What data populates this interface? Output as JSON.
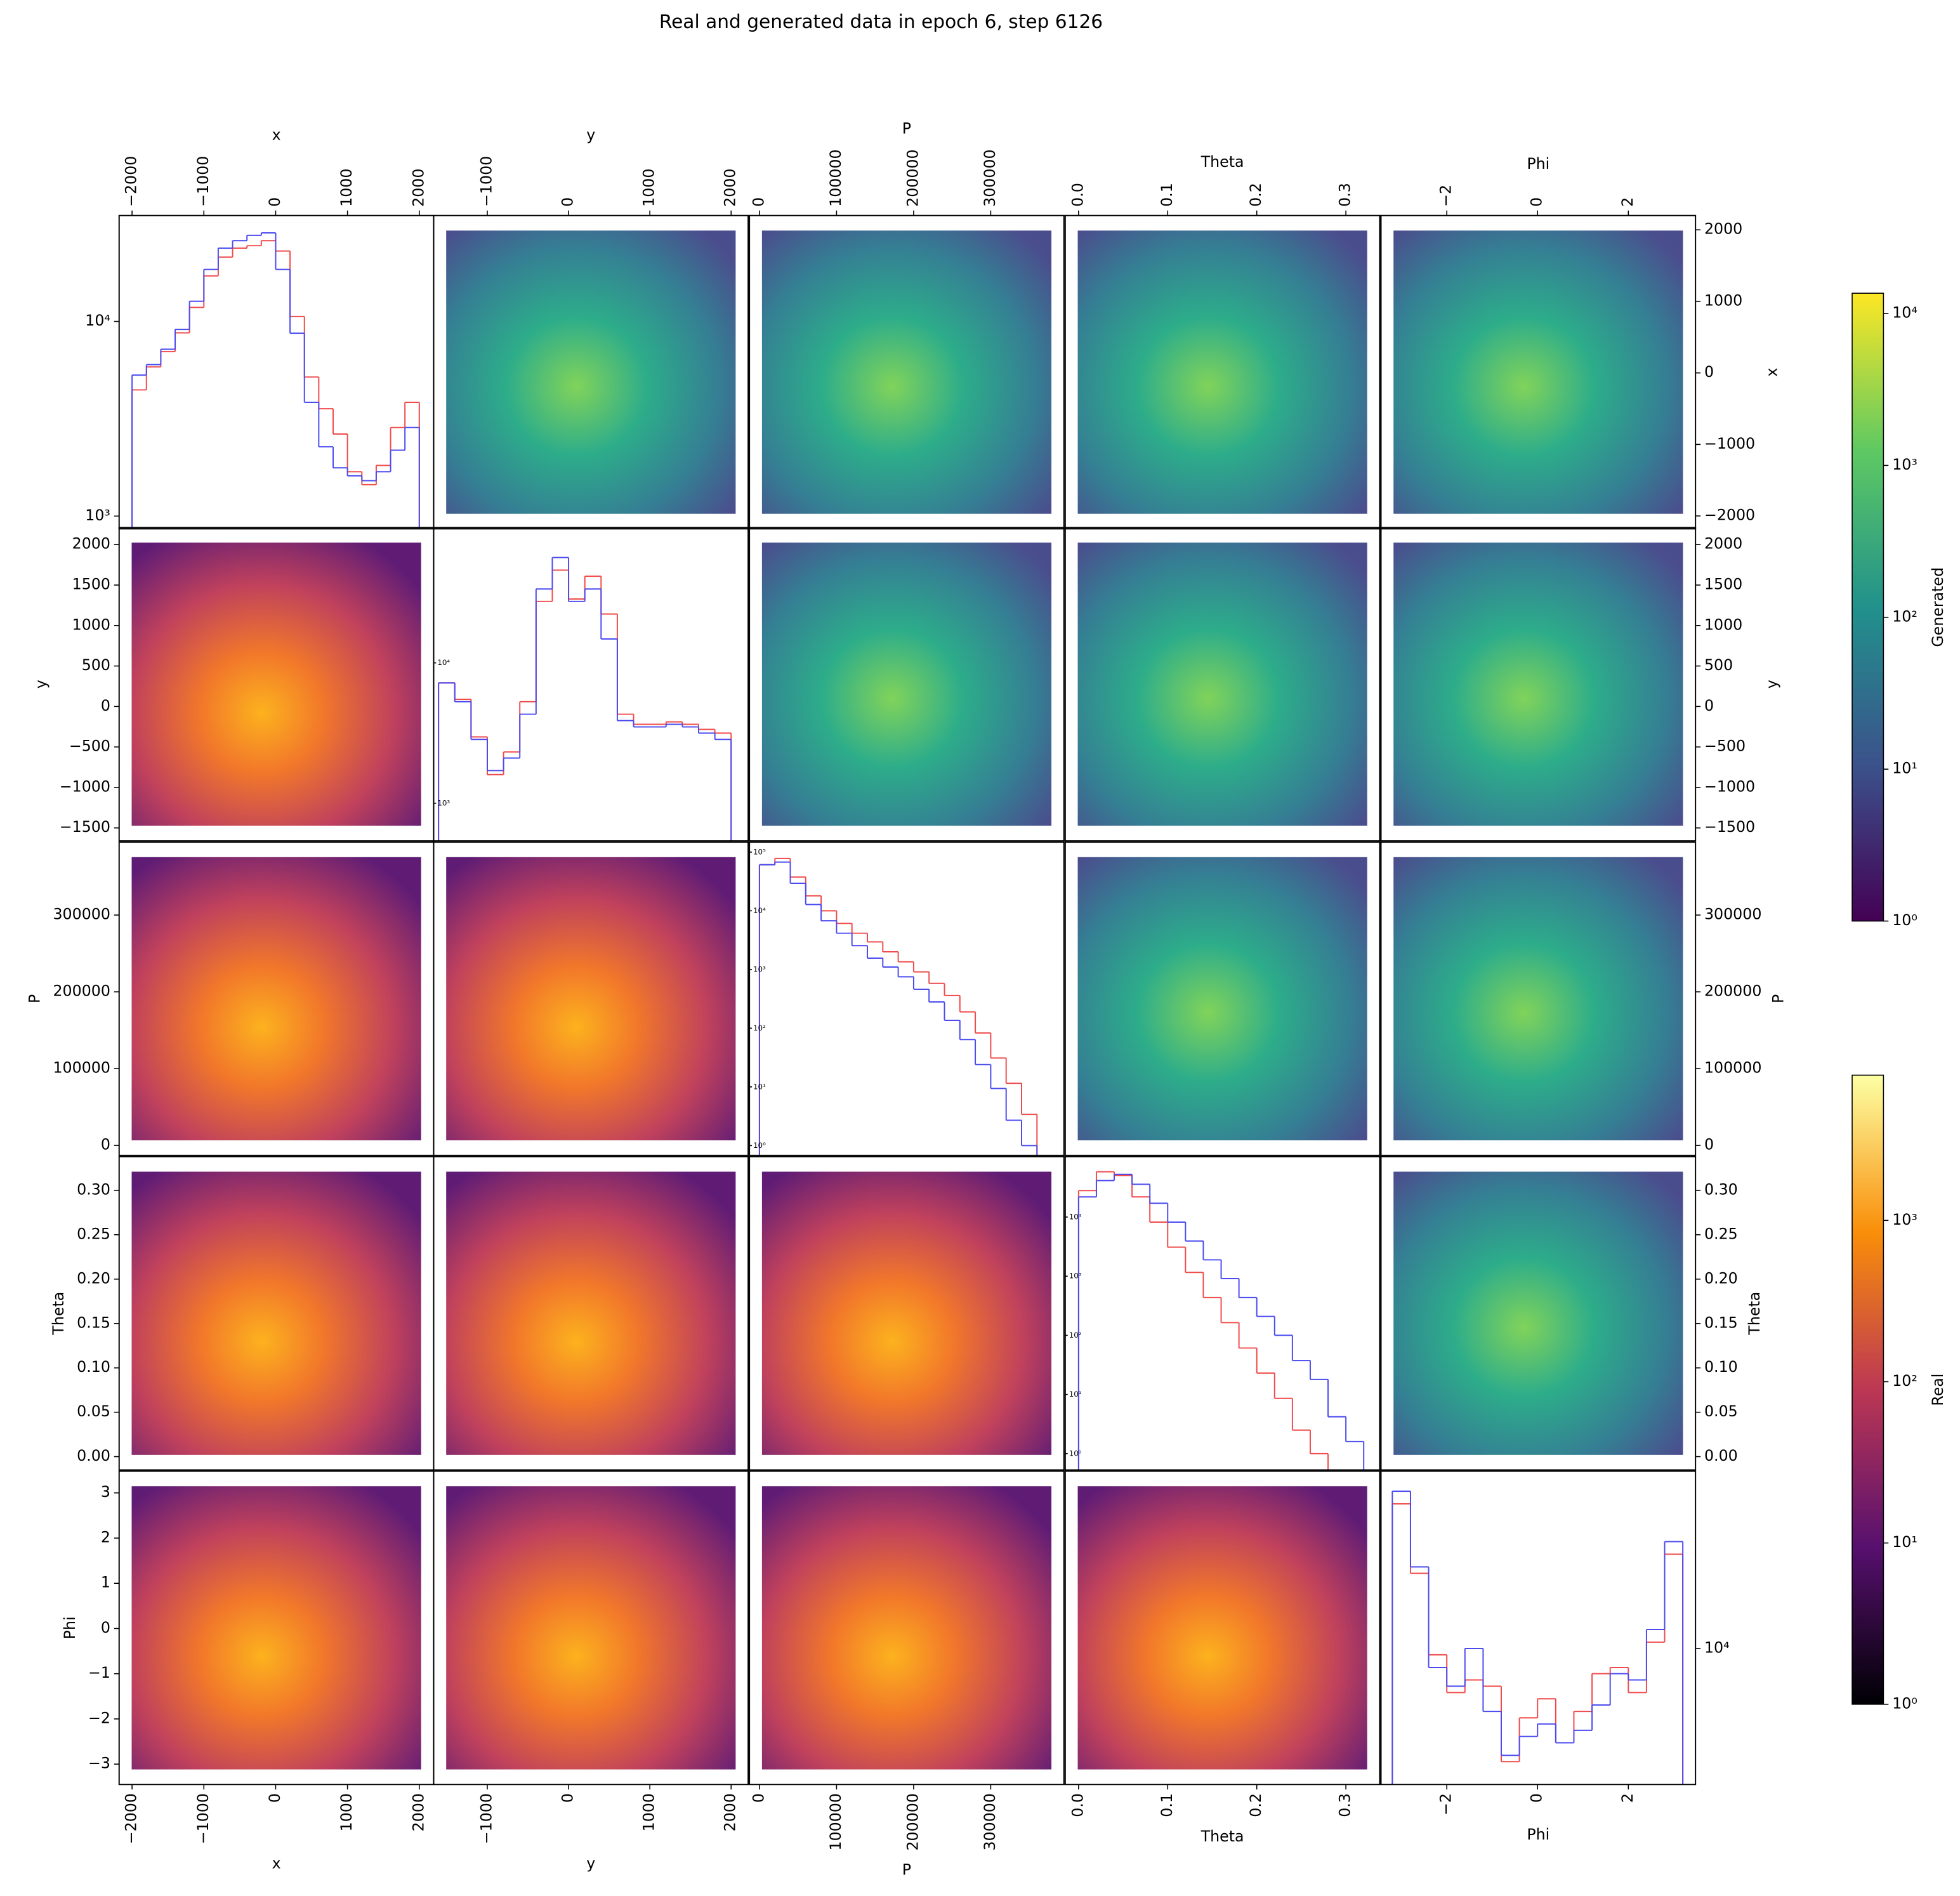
{
  "chart_data": {
    "type": "pairplot",
    "title": "Real and generated data in epoch 6, step 6126",
    "variables": [
      {
        "label": "x",
        "lim": [
          -2180,
          2200
        ],
        "ticks": [
          {
            "value": -2000,
            "label": "−2000"
          },
          {
            "value": -1000,
            "label": "−1000"
          },
          0,
          1000,
          2000
        ]
      },
      {
        "label": "y",
        "lim": [
          -1660,
          2210
        ],
        "ticks": [
          {
            "value": -1000,
            "label": "−1000"
          },
          0,
          1000,
          2000
        ],
        "row_ticks": [
          {
            "value": -1500,
            "label": "−1500"
          },
          {
            "value": -1000,
            "label": "−1000"
          },
          {
            "value": -500,
            "label": "−500"
          },
          0,
          500,
          1000,
          1500,
          2000
        ]
      },
      {
        "label": "P",
        "lim": [
          -13000,
          395000
        ],
        "ticks": [
          0,
          100000,
          200000,
          300000
        ]
      },
      {
        "label": "Theta",
        "lim": [
          -0.015,
          0.338
        ],
        "ticks": [
          {
            "value": 0,
            "label": "0.0"
          },
          0.1,
          0.2,
          0.3
        ],
        "row_ticks": [
          {
            "value": 0,
            "label": "0.00"
          },
          0.05,
          {
            "value": 0.1,
            "label": "0.10"
          },
          0.15,
          {
            "value": 0.2,
            "label": "0.20"
          },
          0.25,
          {
            "value": 0.3,
            "label": "0.30"
          }
        ]
      },
      {
        "label": "Phi",
        "lim": [
          -3.45,
          3.48
        ],
        "ticks": [
          {
            "value": -2,
            "label": "−2"
          },
          0,
          2
        ],
        "row_ticks": [
          {
            "value": -3,
            "label": "−3"
          },
          {
            "value": -2,
            "label": "−2"
          },
          {
            "value": -1,
            "label": "−1"
          },
          0,
          1,
          2,
          3
        ]
      }
    ],
    "diagonal": [
      {
        "type": "histogram",
        "log_scale": true,
        "ylim": [
          860,
          35000
        ],
        "yticks": [
          {
            "value": 1000,
            "label": "10³"
          },
          {
            "value": 10000,
            "label": "10⁴"
          }
        ],
        "bins": [
          -2000,
          -1800,
          -1600,
          -1400,
          -1200,
          -1000,
          -800,
          -600,
          -400,
          -200,
          0,
          200,
          400,
          600,
          800,
          1000,
          1200,
          1400,
          1600,
          1800,
          2000
        ],
        "series": [
          {
            "color": "#f04a4a",
            "values": [
              4450,
              5840,
              7000,
              8740,
              11800,
              17150,
              21400,
              23800,
              24500,
              26000,
              23000,
              10600,
              5180,
              3560,
              2640,
              1690,
              1450,
              1820,
              2850,
              3840
            ]
          },
          {
            "color": "#4a4af0",
            "values": [
              5300,
              6000,
              7200,
              9100,
              12700,
              18500,
              23800,
              26000,
              27700,
              28500,
              18500,
              8700,
              3840,
              2270,
              1770,
              1610,
              1520,
              1690,
              2180,
              2850
            ]
          }
        ]
      },
      {
        "type": "histogram",
        "log_scale": true,
        "ylim": [
          540,
          92000
        ],
        "yticks": [
          {
            "value": 1000,
            "label": "10³"
          },
          {
            "value": 10000,
            "label": "10⁴"
          }
        ],
        "bins": [
          -1600,
          -1400,
          -1200,
          -1000,
          -800,
          -600,
          -400,
          -200,
          0,
          200,
          400,
          600,
          800,
          1000,
          1200,
          1400,
          1600,
          1800,
          2000
        ],
        "series": [
          {
            "color": "#f04a4a",
            "values": [
              7200,
              5500,
              2970,
              1600,
              2320,
              5290,
              27400,
              45800,
              28500,
              41400,
              22300,
              4310,
              3650,
              3650,
              3800,
              3650,
              3360,
              3160
            ]
          },
          {
            "color": "#4a4af0",
            "values": [
              7200,
              5290,
              2850,
              1710,
              2100,
              4310,
              33600,
              56300,
              27400,
              33600,
              14800,
              3880,
              3500,
              3500,
              3650,
              3500,
              3160,
              2850
            ]
          }
        ]
      },
      {
        "type": "histogram",
        "log_scale": true,
        "ylim": [
          0.68,
          148000
        ],
        "yticks": [
          {
            "value": 1,
            "label": "10⁰"
          },
          {
            "value": 10,
            "label": "10¹"
          },
          {
            "value": 100,
            "label": "10²"
          },
          {
            "value": 1000,
            "label": "10³"
          },
          {
            "value": 10000,
            "label": "10⁴"
          },
          {
            "value": 100000,
            "label": "10⁵"
          }
        ],
        "bins": [
          0,
          20000,
          40000,
          60000,
          80000,
          100000,
          120000,
          140000,
          160000,
          180000,
          200000,
          220000,
          240000,
          260000,
          280000,
          300000,
          320000,
          340000,
          360000
        ],
        "series": [
          {
            "color": "#f04a4a",
            "values": [
              61000,
              78000,
              37500,
              18000,
              10000,
              6100,
              4150,
              2950,
              2000,
              1350,
              910,
              580,
              360,
              190,
              83,
              31,
              11.5,
              3.4
            ]
          },
          {
            "color": "#4a4af0",
            "values": [
              61000,
              67500,
              29400,
              12800,
              6750,
              4150,
              2550,
              1560,
              1100,
              750,
              460,
              280,
              136,
              64,
              24,
              9.4,
              2.7,
              1
            ]
          }
        ]
      },
      {
        "type": "histogram",
        "log_scale": true,
        "ylim": [
          0.53,
          105000
        ],
        "yticks": [
          {
            "value": 1,
            "label": "10⁰"
          },
          {
            "value": 10,
            "label": "10¹"
          },
          {
            "value": 100,
            "label": "10²"
          },
          {
            "value": 1000,
            "label": "10³"
          },
          {
            "value": 10000,
            "label": "10⁴"
          }
        ],
        "bins": [
          0,
          0.02,
          0.04,
          0.06,
          0.08,
          0.1,
          0.12,
          0.14,
          0.16,
          0.18,
          0.2,
          0.22,
          0.24,
          0.26,
          0.28,
          0.3,
          0.32
        ],
        "series": [
          {
            "color": "#f04a4a",
            "values": [
              28000,
              58300,
              50500,
              21900,
              8200,
              3090,
              1160,
              435,
              164,
              61,
              23,
              8.6,
              2.5,
              1,
              null,
              null
            ]
          },
          {
            "color": "#4a4af0",
            "values": [
              21900,
              41400,
              52700,
              35800,
              17100,
              8200,
              3940,
              1890,
              910,
              435,
              209,
              100,
              37.5,
              18,
              4.2,
              1.6
            ]
          }
        ]
      },
      {
        "type": "histogram",
        "log_scale": true,
        "ylim": [
          2880,
          50700
        ],
        "yticks": [
          {
            "value": 10000,
            "label": "10⁴"
          }
        ],
        "bins": [
          -3.2,
          -2.8,
          -2.4,
          -2.0,
          -1.6,
          -1.2,
          -0.8,
          -0.4,
          0,
          0.4,
          0.8,
          1.2,
          1.6,
          2.0,
          2.4,
          2.8,
          3.2
        ],
        "series": [
          {
            "color": "#f04a4a",
            "values": [
              37600,
              19900,
              9440,
              6680,
              7500,
              7080,
              3550,
              5300,
              6310,
              4220,
              5620,
              7940,
              8400,
              6680,
              10600,
              23700
            ]
          },
          {
            "color": "#4a4af0",
            "values": [
              42200,
              21100,
              8400,
              7080,
              10000,
              5620,
              3760,
              4470,
              5010,
              4220,
              4730,
              5960,
              7940,
              7500,
              11900,
              26600
            ]
          }
        ]
      }
    ],
    "colorbars": [
      {
        "label": "Generated",
        "colormap": "viridis",
        "log_scale": true,
        "lim": [
          1,
          13600
        ],
        "ticks": [
          {
            "value": 1,
            "label": "10⁰"
          },
          {
            "value": 10,
            "label": "10¹"
          },
          {
            "value": 100,
            "label": "10²"
          },
          {
            "value": 1000,
            "label": "10³"
          },
          {
            "value": 10000,
            "label": "10⁴"
          }
        ]
      },
      {
        "label": "Real",
        "colormap": "inferno",
        "log_scale": true,
        "lim": [
          1,
          7950
        ],
        "ticks": [
          {
            "value": 1,
            "label": "10⁰"
          },
          {
            "value": 10,
            "label": "10¹"
          },
          {
            "value": 100,
            "label": "10²"
          },
          {
            "value": 1000,
            "label": "10³"
          }
        ]
      }
    ]
  }
}
